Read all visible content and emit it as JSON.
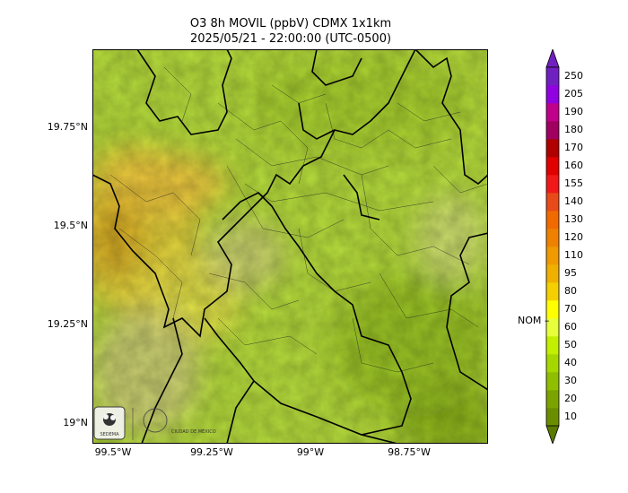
{
  "title_line1": "O3 8h MOVIL (ppbV) CDMX 1x1km",
  "title_line2": "2025/05/21 - 22:00:00 (UTC-0500)",
  "lat_labels": [
    "19.75°N",
    "19.5°N",
    "19.25°N",
    "19°N"
  ],
  "lon_labels": [
    "99.5°W",
    "99.25°W",
    "99°W",
    "98.75°W"
  ],
  "colorbar": {
    "ticks": [
      "10",
      "20",
      "30",
      "40",
      "50",
      "60",
      "70",
      "80",
      "95",
      "110",
      "120",
      "130",
      "140",
      "155",
      "160",
      "170",
      "180",
      "190",
      "205",
      "250"
    ],
    "colors": [
      "#6b8e00",
      "#7ba400",
      "#8fbf00",
      "#a6d800",
      "#c3ef00",
      "#e6ff3a",
      "#ffff00",
      "#f4d000",
      "#f0b000",
      "#ee9a00",
      "#ee8200",
      "#f06a00",
      "#e84a1a",
      "#f01818",
      "#e00000",
      "#b00000",
      "#a00060",
      "#c0008a",
      "#9000e0",
      "#7020c0"
    ],
    "nom_label": "NOM"
  },
  "logos": {
    "sedema": "SEDEMA",
    "cdmx": "CIUDAD DE MÉXICO"
  }
}
